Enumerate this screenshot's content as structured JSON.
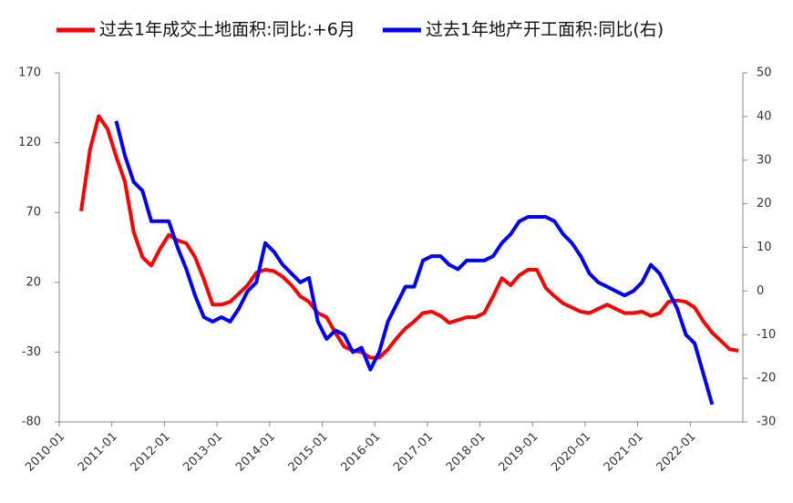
{
  "chart_data": {
    "type": "line",
    "xlim": [
      "2010-01",
      "2023-01"
    ],
    "xticks": [
      "2010-01",
      "2011-01",
      "2012-01",
      "2013-01",
      "2014-01",
      "2015-01",
      "2016-01",
      "2017-01",
      "2018-01",
      "2019-01",
      "2020-01",
      "2021-01",
      "2022-01"
    ],
    "ylim": [
      -80,
      170
    ],
    "yticks": [
      -80,
      -30,
      20,
      70,
      120,
      170
    ],
    "y2lim": [
      -30,
      50
    ],
    "y2ticks": [
      -30,
      -20,
      -10,
      0,
      10,
      20,
      30,
      40,
      50
    ],
    "legend": "top",
    "series": [
      {
        "name": "过去1年成交土地面积:同比:+6月",
        "color": "#ff0000",
        "x": [
          "2010-06",
          "2010-08",
          "2010-10",
          "2010-12",
          "2011-02",
          "2011-04",
          "2011-06",
          "2011-08",
          "2011-10",
          "2011-12",
          "2012-02",
          "2012-04",
          "2012-06",
          "2012-08",
          "2012-10",
          "2012-12",
          "2013-02",
          "2013-04",
          "2013-06",
          "2013-08",
          "2013-10",
          "2013-12",
          "2014-02",
          "2014-04",
          "2014-06",
          "2014-08",
          "2014-10",
          "2014-12",
          "2015-02",
          "2015-04",
          "2015-06",
          "2015-08",
          "2015-10",
          "2015-12",
          "2016-02",
          "2016-04",
          "2016-06",
          "2016-08",
          "2016-10",
          "2016-12",
          "2017-02",
          "2017-04",
          "2017-06",
          "2017-08",
          "2017-10",
          "2017-12",
          "2018-02",
          "2018-04",
          "2018-06",
          "2018-08",
          "2018-10",
          "2018-12",
          "2019-02",
          "2019-04",
          "2019-06",
          "2019-08",
          "2019-10",
          "2019-12",
          "2020-02",
          "2020-04",
          "2020-06",
          "2020-08",
          "2020-10",
          "2020-12",
          "2021-02",
          "2021-04",
          "2021-06",
          "2021-08",
          "2021-10",
          "2021-12",
          "2022-02",
          "2022-04",
          "2022-06",
          "2022-08",
          "2022-10",
          "2022-12"
        ],
        "values": [
          71,
          115,
          139,
          130,
          110,
          92,
          56,
          38,
          32,
          44,
          54,
          50,
          48,
          38,
          22,
          4,
          4,
          6,
          12,
          18,
          27,
          29,
          28,
          24,
          18,
          10,
          6,
          -2,
          -5,
          -16,
          -26,
          -29,
          -30,
          -34,
          -34,
          -28,
          -20,
          -13,
          -8,
          -2,
          -1,
          -4,
          -9,
          -7,
          -5,
          -5,
          -2,
          10,
          23,
          18,
          25,
          29,
          29,
          16,
          10,
          5,
          2,
          -1,
          -2,
          1,
          4,
          1,
          -2,
          -2,
          -1,
          -4,
          -2,
          6,
          7,
          6,
          2,
          -8,
          -16,
          -22,
          -28,
          -29
        ]
      },
      {
        "name": "过去1年地产开工面积:同比(右)",
        "color": "#0000ff",
        "axis": "y2",
        "x": [
          "2011-02",
          "2011-04",
          "2011-06",
          "2011-08",
          "2011-10",
          "2011-12",
          "2012-02",
          "2012-04",
          "2012-06",
          "2012-08",
          "2012-10",
          "2012-12",
          "2013-02",
          "2013-04",
          "2013-06",
          "2013-08",
          "2013-10",
          "2013-12",
          "2014-02",
          "2014-04",
          "2014-06",
          "2014-08",
          "2014-10",
          "2014-12",
          "2015-02",
          "2015-04",
          "2015-06",
          "2015-08",
          "2015-10",
          "2015-12",
          "2016-02",
          "2016-04",
          "2016-06",
          "2016-08",
          "2016-10",
          "2016-12",
          "2017-02",
          "2017-04",
          "2017-06",
          "2017-08",
          "2017-10",
          "2017-12",
          "2018-02",
          "2018-04",
          "2018-06",
          "2018-08",
          "2018-10",
          "2018-12",
          "2019-02",
          "2019-04",
          "2019-06",
          "2019-08",
          "2019-10",
          "2019-12",
          "2020-02",
          "2020-04",
          "2020-06",
          "2020-08",
          "2020-10",
          "2020-12",
          "2021-02",
          "2021-04",
          "2021-06",
          "2021-08",
          "2021-10",
          "2021-12",
          "2022-02",
          "2022-04",
          "2022-06"
        ],
        "values": [
          39,
          31,
          25,
          23,
          16,
          16,
          16,
          10,
          5,
          -1,
          -6,
          -7,
          -6,
          -7,
          -4,
          0,
          2,
          11,
          9,
          6,
          4,
          2,
          3,
          -7,
          -11,
          -9,
          -10,
          -14,
          -13,
          -18,
          -14,
          -7,
          -3,
          1,
          1,
          7,
          8,
          8,
          6,
          5,
          7,
          7,
          7,
          8,
          11,
          13,
          16,
          17,
          17,
          17,
          16,
          13,
          11,
          8,
          4,
          2,
          1,
          0,
          -1,
          0,
          2,
          6,
          4,
          0,
          -4,
          -10,
          -12,
          -19,
          -26
        ]
      }
    ]
  }
}
